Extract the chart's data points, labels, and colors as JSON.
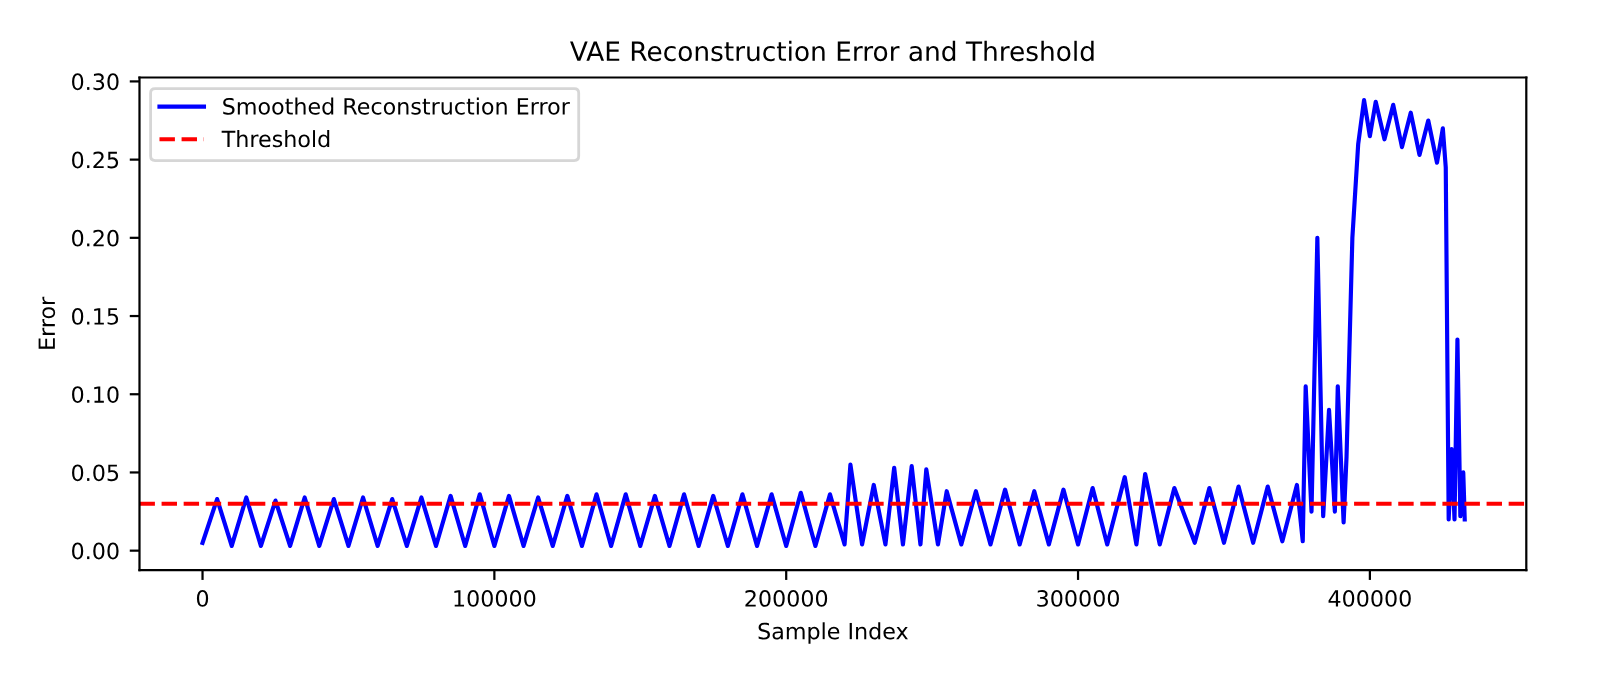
{
  "chart_data": {
    "type": "line",
    "title": "VAE Reconstruction Error and Threshold",
    "xlabel": "Sample Index",
    "ylabel": "Error",
    "xlim": [
      -21600,
      453600
    ],
    "xticks": [
      0,
      100000,
      200000,
      300000,
      400000
    ],
    "ylim": [
      -0.0125,
      0.3025
    ],
    "yticks": [
      {
        "value": 0,
        "label": "0.00"
      },
      {
        "value": 0.05,
        "label": "0.05"
      },
      {
        "value": 0.1,
        "label": "0.10"
      },
      {
        "value": 0.15,
        "label": "0.15"
      },
      {
        "value": 0.2,
        "label": "0.20"
      },
      {
        "value": 0.25,
        "label": "0.25"
      },
      {
        "value": 0.3,
        "label": "0.30"
      }
    ],
    "grid": false,
    "legend": "top left",
    "marker": "none",
    "line_style": "solid",
    "ref_lines": [
      {
        "axis": "y",
        "value": 0.03,
        "label": "Threshold",
        "color": "#ff0000",
        "line_style": "dashed"
      }
    ],
    "series": [
      {
        "name": "Smoothed Reconstruction Error",
        "color": "#0000ff",
        "x": [
          0,
          5000,
          10000,
          15000,
          20000,
          25000,
          30000,
          35000,
          40000,
          45000,
          50000,
          55000,
          60000,
          65000,
          70000,
          75000,
          80000,
          85000,
          90000,
          95000,
          100000,
          105000,
          110000,
          115000,
          120000,
          125000,
          130000,
          135000,
          140000,
          145000,
          150000,
          155000,
          160000,
          165000,
          170000,
          175000,
          180000,
          185000,
          190000,
          195000,
          200000,
          205000,
          210000,
          215000,
          220000,
          222000,
          226000,
          230000,
          234000,
          237000,
          240000,
          243000,
          246000,
          248000,
          252000,
          255000,
          260000,
          265000,
          270000,
          275000,
          280000,
          285000,
          290000,
          295000,
          300000,
          305000,
          310000,
          316000,
          320000,
          323000,
          328000,
          333000,
          340000,
          345000,
          350000,
          355000,
          360000,
          365000,
          370000,
          375000,
          377000,
          378000,
          380000,
          382000,
          384000,
          386000,
          388000,
          389000,
          391000,
          392000,
          394000,
          396000,
          398000,
          400000,
          402000,
          405000,
          408000,
          411000,
          414000,
          417000,
          420000,
          423000,
          425000,
          426000,
          427000,
          428000,
          429000,
          430000,
          431000,
          432000,
          432500
        ],
        "values": [
          0.005,
          0.033,
          0.003,
          0.034,
          0.003,
          0.032,
          0.003,
          0.034,
          0.003,
          0.033,
          0.003,
          0.034,
          0.003,
          0.033,
          0.003,
          0.034,
          0.003,
          0.035,
          0.003,
          0.036,
          0.003,
          0.035,
          0.003,
          0.034,
          0.003,
          0.035,
          0.003,
          0.036,
          0.003,
          0.036,
          0.003,
          0.035,
          0.003,
          0.036,
          0.003,
          0.035,
          0.003,
          0.036,
          0.003,
          0.036,
          0.003,
          0.037,
          0.003,
          0.036,
          0.004,
          0.055,
          0.004,
          0.042,
          0.004,
          0.053,
          0.004,
          0.054,
          0.004,
          0.052,
          0.004,
          0.038,
          0.004,
          0.038,
          0.004,
          0.039,
          0.004,
          0.038,
          0.004,
          0.039,
          0.004,
          0.04,
          0.004,
          0.047,
          0.004,
          0.049,
          0.004,
          0.04,
          0.005,
          0.04,
          0.005,
          0.041,
          0.005,
          0.041,
          0.006,
          0.042,
          0.006,
          0.105,
          0.025,
          0.2,
          0.022,
          0.09,
          0.025,
          0.105,
          0.018,
          0.06,
          0.2,
          0.26,
          0.288,
          0.265,
          0.287,
          0.263,
          0.285,
          0.258,
          0.28,
          0.253,
          0.275,
          0.248,
          0.27,
          0.245,
          0.02,
          0.065,
          0.02,
          0.135,
          0.022,
          0.05,
          0.02
        ]
      }
    ]
  }
}
